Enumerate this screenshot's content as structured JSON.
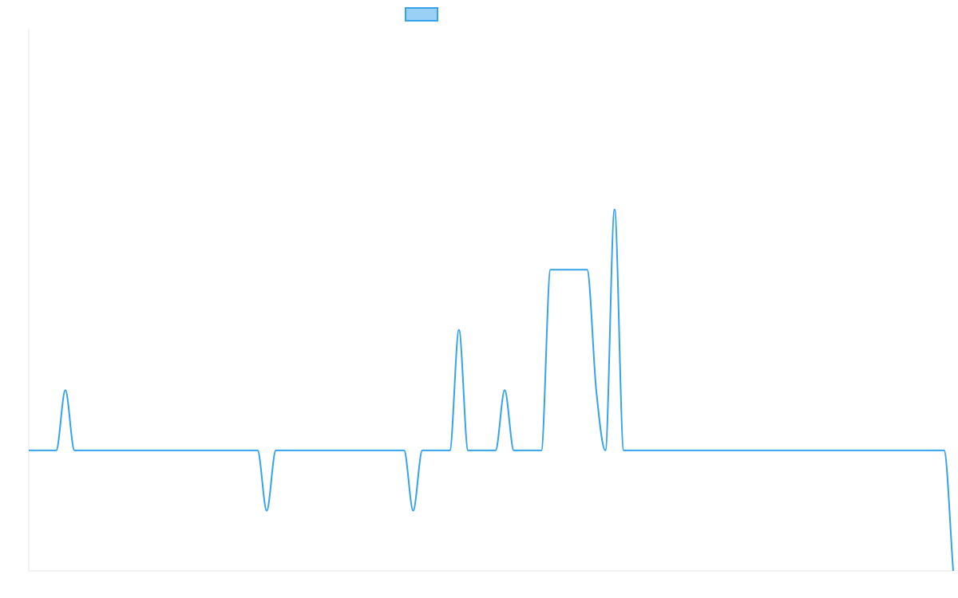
{
  "chart_data": {
    "type": "line",
    "title": "",
    "xlabel": "",
    "ylabel": "",
    "ylim": [
      -2,
      7
    ],
    "x": [
      0,
      1,
      2,
      3,
      4,
      5,
      6,
      7,
      8,
      9,
      10,
      11,
      12,
      13,
      14,
      15,
      16,
      17,
      18,
      19,
      20,
      21,
      22,
      23,
      24,
      25,
      26,
      27,
      28,
      29,
      30,
      31,
      32,
      33,
      34,
      35,
      36,
      37,
      38,
      39,
      40,
      41,
      42,
      43,
      44,
      45,
      46,
      47,
      48,
      49,
      50,
      51,
      52,
      53,
      54,
      55,
      56,
      57,
      58,
      59,
      60,
      61,
      62,
      63,
      64,
      65,
      66,
      67,
      68,
      69,
      70,
      71,
      72,
      73,
      74,
      75,
      76,
      77,
      78,
      79,
      80,
      81,
      82,
      83,
      84,
      85,
      86,
      87,
      88,
      89,
      90,
      91,
      92,
      93,
      94,
      95,
      96,
      97,
      98,
      99,
      100,
      101
    ],
    "series": [
      {
        "name": "",
        "color": "#36a2eb",
        "fill": "#9ad0f5",
        "values": [
          0,
          0,
          0,
          0,
          1,
          0,
          0,
          0,
          0,
          0,
          0,
          0,
          0,
          0,
          0,
          0,
          0,
          0,
          0,
          0,
          0,
          0,
          0,
          0,
          0,
          0,
          -1,
          0,
          0,
          0,
          0,
          0,
          0,
          0,
          0,
          0,
          0,
          0,
          0,
          0,
          0,
          0,
          -1,
          0,
          0,
          0,
          0,
          2,
          0,
          0,
          0,
          0,
          1,
          0,
          0,
          0,
          0,
          3,
          3,
          3,
          3,
          3,
          1,
          0,
          4,
          0,
          0,
          0,
          0,
          0,
          0,
          0,
          0,
          0,
          0,
          0,
          0,
          0,
          0,
          0,
          0,
          0,
          0,
          0,
          0,
          0,
          0,
          0,
          0,
          0,
          0,
          0,
          0,
          0,
          0,
          0,
          0,
          0,
          0,
          0,
          0,
          -2
        ]
      }
    ]
  }
}
